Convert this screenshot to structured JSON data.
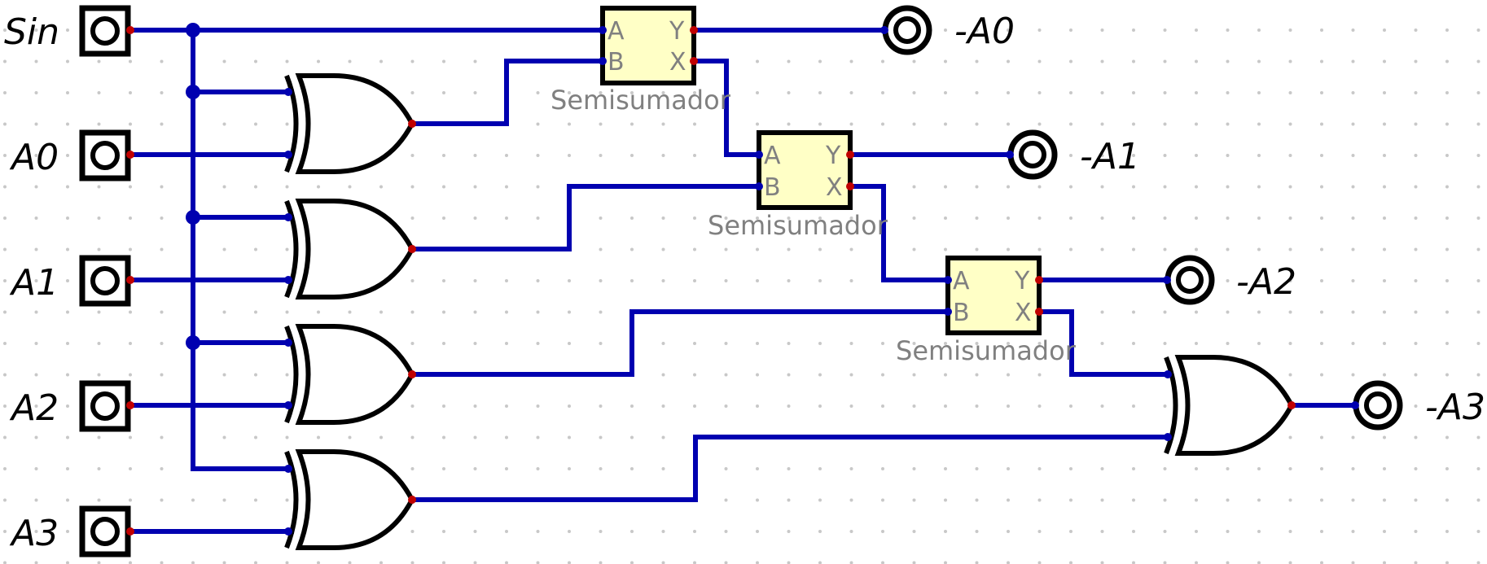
{
  "inputs": [
    {
      "label": "Sin"
    },
    {
      "label": "A0"
    },
    {
      "label": "A1"
    },
    {
      "label": "A2"
    },
    {
      "label": "A3"
    }
  ],
  "outputs": [
    {
      "label": "-A0"
    },
    {
      "label": "-A1"
    },
    {
      "label": "-A2"
    },
    {
      "label": "-A3"
    }
  ],
  "half_adders": [
    {
      "label": "Semisumador",
      "pins": {
        "a": "A",
        "b": "B",
        "y": "Y",
        "x": "X"
      }
    },
    {
      "label": "Semisumador",
      "pins": {
        "a": "A",
        "b": "B",
        "y": "Y",
        "x": "X"
      }
    },
    {
      "label": "Semisumador",
      "pins": {
        "a": "A",
        "b": "B",
        "y": "Y",
        "x": "X"
      }
    }
  ],
  "colors": {
    "wire": "#0000b0",
    "box_fill": "#ffffc6",
    "label_gray": "#808080",
    "pin_red": "#c00000"
  }
}
